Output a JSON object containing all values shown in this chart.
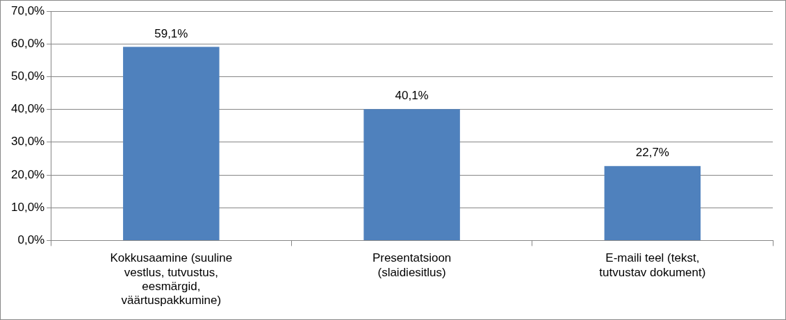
{
  "chart_data": {
    "type": "bar",
    "categories": [
      "Kokkusaamine (suuline vestlus, tutvustus, eesmärgid, väärtuspakkumine)",
      "Presentatsioon (slaidiesitlus)",
      "E-maili teel (tekst, tutvustav dokument)"
    ],
    "values": [
      59.1,
      40.1,
      22.7
    ],
    "value_labels": [
      "59,1%",
      "40,1%",
      "22,7%"
    ],
    "color": "#4f81bd",
    "ylim": [
      0,
      70
    ],
    "yticks": [
      {
        "value": 0,
        "label": "0,0%"
      },
      {
        "value": 10,
        "label": "10,0%"
      },
      {
        "value": 20,
        "label": "20,0%"
      },
      {
        "value": 30,
        "label": "30,0%"
      },
      {
        "value": 40,
        "label": "40,0%"
      },
      {
        "value": 50,
        "label": "50,0%"
      },
      {
        "value": 60,
        "label": "60,0%"
      },
      {
        "value": 70,
        "label": "70,0%"
      }
    ],
    "grid": "y",
    "legend": false
  }
}
